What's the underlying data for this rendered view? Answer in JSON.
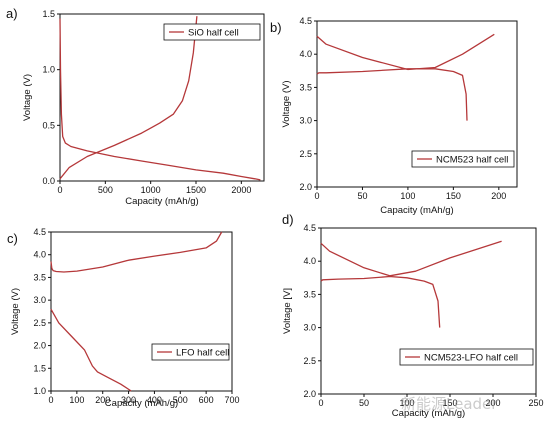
{
  "colors": {
    "curve": "#b5383a",
    "axis": "#111111"
  },
  "watermark": "新能源Leader",
  "chart_data": [
    {
      "panel_label": "a)",
      "type": "line",
      "xlabel": "Capacity (mAh/g)",
      "ylabel": "Voltage (V)",
      "xlim": [
        0,
        2250
      ],
      "ylim": [
        0,
        1.5
      ],
      "xticks": [
        "0",
        "500",
        "1000",
        "1500",
        "2000"
      ],
      "xtick_values": [
        0,
        500,
        1000,
        1500,
        2000
      ],
      "yticks": [
        "0.0",
        "0.5",
        "1.0",
        "1.5"
      ],
      "ytick_values": [
        0,
        0.5,
        1.0,
        1.5
      ],
      "legend": "SiO half cell",
      "legend_position": "top-right",
      "series": [
        {
          "x": [
            0,
            5,
            15,
            30,
            60,
            120,
            300,
            600,
            900,
            1200,
            1500,
            1800,
            2000,
            2150,
            2210
          ],
          "y": [
            1.46,
            1.0,
            0.6,
            0.4,
            0.34,
            0.31,
            0.27,
            0.22,
            0.18,
            0.14,
            0.1,
            0.07,
            0.04,
            0.02,
            0.01
          ]
        },
        {
          "x": [
            0,
            100,
            300,
            600,
            900,
            1100,
            1250,
            1350,
            1420,
            1470,
            1510
          ],
          "y": [
            0.02,
            0.12,
            0.22,
            0.32,
            0.43,
            0.52,
            0.6,
            0.72,
            0.9,
            1.15,
            1.48
          ]
        }
      ]
    },
    {
      "panel_label": "b)",
      "type": "line",
      "xlabel": "Capacity (mAh/g)",
      "ylabel": "Voltage (V)",
      "xlim": [
        0,
        220
      ],
      "ylim": [
        2.0,
        4.5
      ],
      "xticks": [
        "0",
        "50",
        "100",
        "150",
        "200"
      ],
      "xtick_values": [
        0,
        50,
        100,
        150,
        200
      ],
      "yticks": [
        "2.0",
        "2.5",
        "3.0",
        "3.5",
        "4.0",
        "4.5"
      ],
      "ytick_values": [
        2.0,
        2.5,
        3.0,
        3.5,
        4.0,
        4.5
      ],
      "legend": "NCM523 half cell",
      "legend_position": "bottom-right",
      "series": [
        {
          "x": [
            0,
            2,
            10,
            50,
            100,
            130,
            150,
            160,
            164,
            165
          ],
          "y": [
            3.7,
            3.72,
            3.72,
            3.74,
            3.78,
            3.78,
            3.74,
            3.68,
            3.4,
            3.0
          ]
        },
        {
          "x": [
            0,
            10,
            50,
            100,
            130,
            160,
            195
          ],
          "y": [
            4.27,
            4.15,
            3.95,
            3.77,
            3.8,
            4.0,
            4.3
          ]
        }
      ]
    },
    {
      "panel_label": "c)",
      "type": "line",
      "xlabel": "Capacity (mAh/g)",
      "ylabel": "Voltage (V)",
      "xlim": [
        0,
        700
      ],
      "ylim": [
        1.0,
        4.5
      ],
      "xticks": [
        "0",
        "100",
        "200",
        "300",
        "400",
        "500",
        "600",
        "700"
      ],
      "xtick_values": [
        0,
        100,
        200,
        300,
        400,
        500,
        600,
        700
      ],
      "yticks": [
        "1.0",
        "1.5",
        "2.0",
        "2.5",
        "3.0",
        "3.5",
        "4.0",
        "4.5"
      ],
      "ytick_values": [
        1.0,
        1.5,
        2.0,
        2.5,
        3.0,
        3.5,
        4.0,
        4.5
      ],
      "legend": "LFO half cell",
      "legend_position": "bottom-right",
      "series": [
        {
          "x": [
            0,
            3,
            8,
            20,
            50,
            100,
            200,
            300,
            400,
            500,
            600,
            640,
            660
          ],
          "y": [
            3.85,
            3.7,
            3.65,
            3.63,
            3.62,
            3.64,
            3.73,
            3.88,
            3.97,
            4.05,
            4.15,
            4.3,
            4.5
          ]
        },
        {
          "x": [
            0,
            30,
            80,
            130,
            160,
            180,
            220,
            270,
            310
          ],
          "y": [
            2.8,
            2.5,
            2.2,
            1.9,
            1.55,
            1.42,
            1.3,
            1.15,
            1.0
          ]
        }
      ]
    },
    {
      "panel_label": "d)",
      "type": "line",
      "xlabel": "Capacity (mAh/g)",
      "ylabel": "Voltage [V]",
      "xlim": [
        0,
        250
      ],
      "ylim": [
        2.0,
        4.5
      ],
      "xticks": [
        "0",
        "50",
        "100",
        "150",
        "200",
        "250"
      ],
      "xtick_values": [
        0,
        50,
        100,
        150,
        200,
        250
      ],
      "yticks": [
        "2.0",
        "2.5",
        "3.0",
        "3.5",
        "4.0",
        "4.5"
      ],
      "ytick_values": [
        2.0,
        2.5,
        3.0,
        3.5,
        4.0,
        4.5
      ],
      "legend": "NCM523-LFO half cell",
      "legend_position": "bottom-right",
      "series": [
        {
          "x": [
            0,
            2,
            20,
            50,
            80,
            100,
            120,
            130,
            136,
            138
          ],
          "y": [
            3.7,
            3.72,
            3.73,
            3.74,
            3.77,
            3.75,
            3.7,
            3.65,
            3.4,
            3.0
          ]
        },
        {
          "x": [
            0,
            10,
            50,
            80,
            110,
            150,
            210
          ],
          "y": [
            4.27,
            4.15,
            3.9,
            3.78,
            3.85,
            4.05,
            4.3
          ]
        }
      ]
    }
  ]
}
